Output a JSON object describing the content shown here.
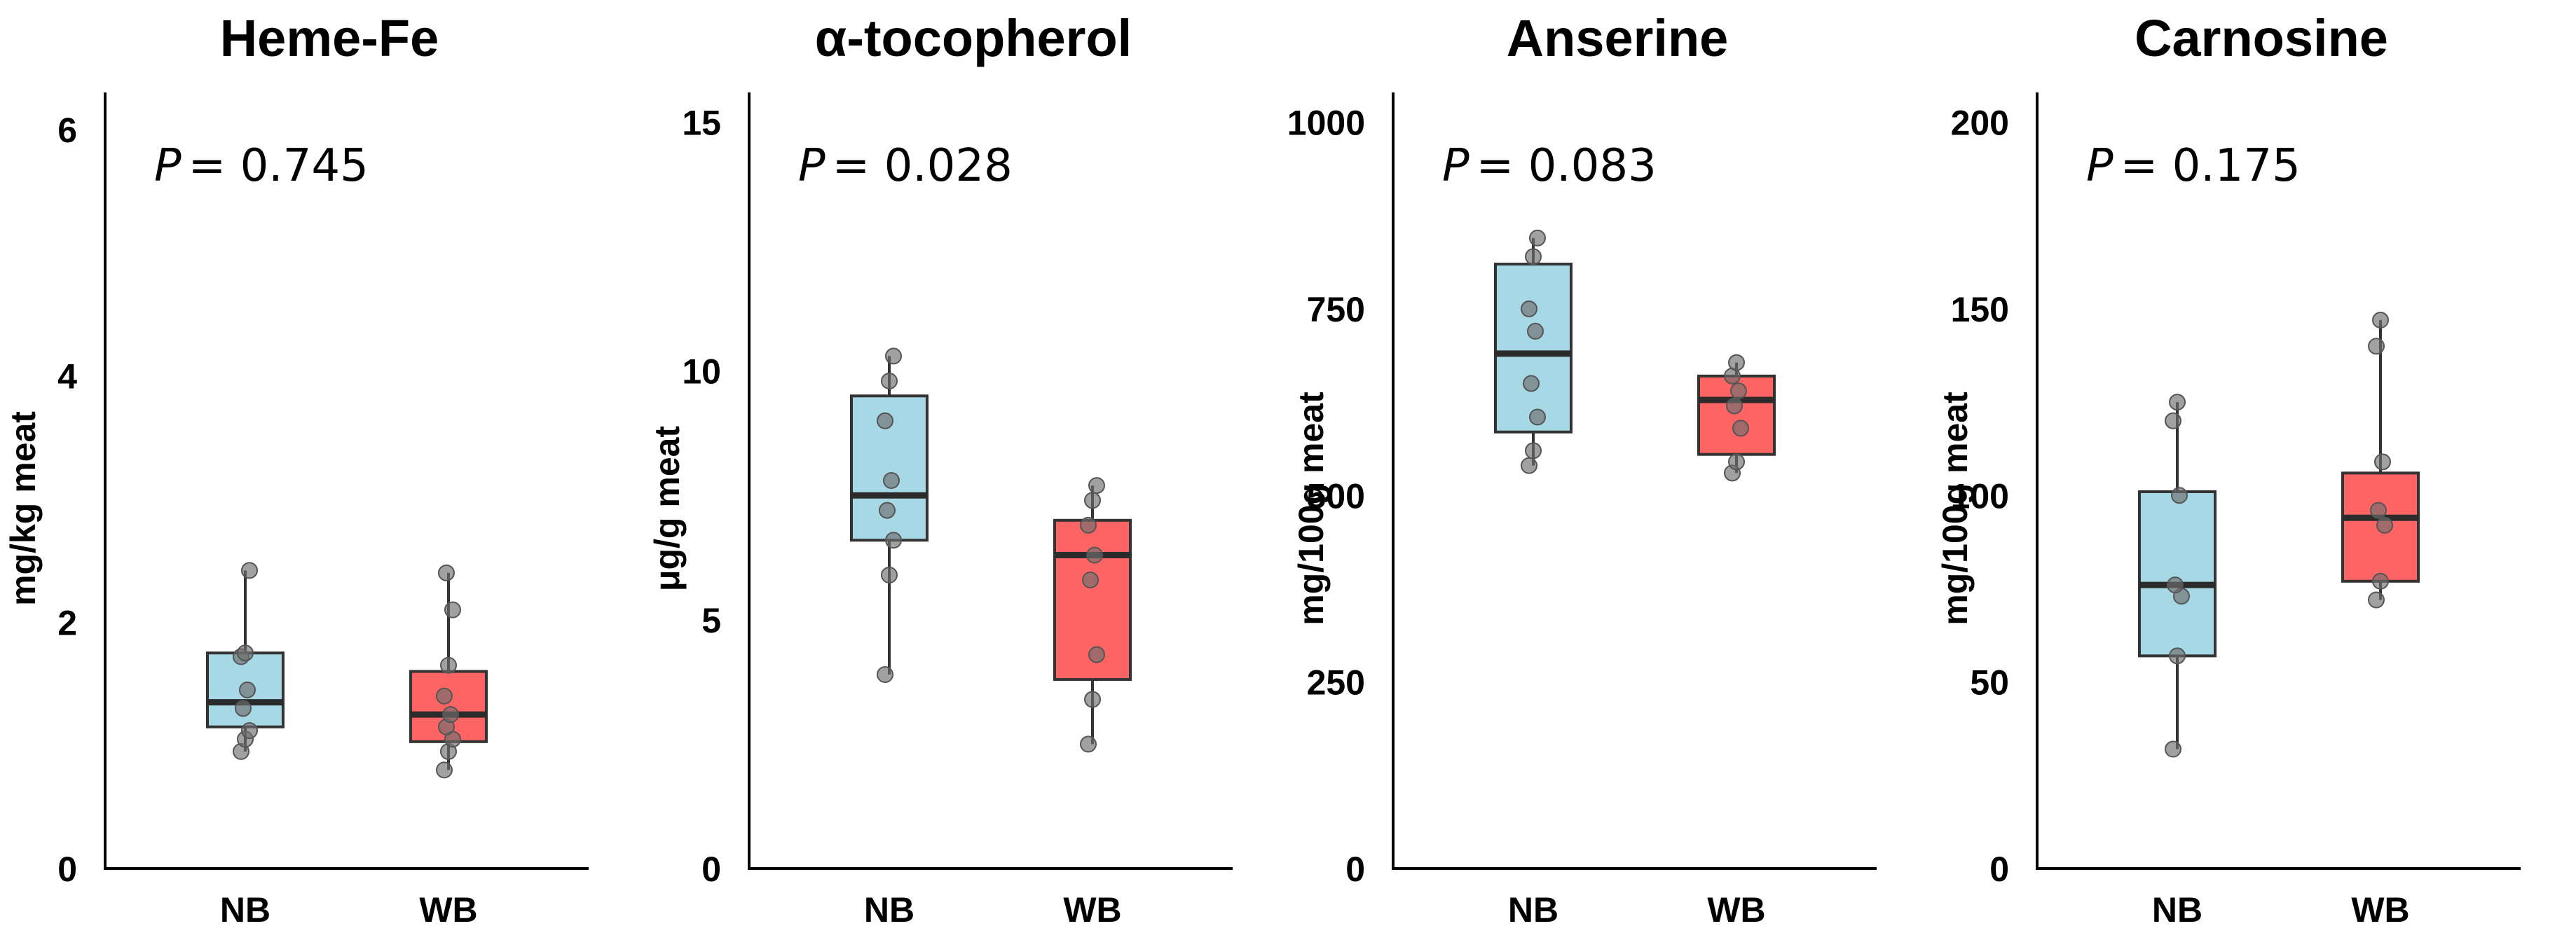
{
  "colors": {
    "NB": "#a6d8e6",
    "WB": "#ff6464",
    "box_stroke": "#333333",
    "point": "#6e6e6e"
  },
  "chart_data": [
    {
      "type": "box",
      "title": "Heme-Fe",
      "ylabel": "mg/kg meat",
      "ylim": [
        0,
        6.3
      ],
      "yticks": [
        0,
        2,
        4,
        6
      ],
      "grid": false,
      "p_label": "P",
      "p_value": "= 0.745",
      "categories": [
        "NB",
        "WB"
      ],
      "boxes": [
        {
          "category": "NB",
          "min": 0.95,
          "q1": 1.15,
          "median": 1.35,
          "q3": 1.75,
          "max": 2.42,
          "points": [
            0.95,
            1.05,
            1.12,
            1.3,
            1.45,
            1.72,
            1.75,
            2.42
          ]
        },
        {
          "category": "WB",
          "min": 0.8,
          "q1": 1.03,
          "median": 1.25,
          "q3": 1.6,
          "max": 2.4,
          "points": [
            0.8,
            0.95,
            1.05,
            1.15,
            1.25,
            1.4,
            1.65,
            2.1,
            2.4
          ]
        }
      ]
    },
    {
      "type": "box",
      "title": "α-tocopherol",
      "ylabel": "μg/g meat",
      "ylim": [
        0,
        15.6
      ],
      "yticks": [
        0,
        5,
        10,
        15
      ],
      "grid": false,
      "p_label": "P",
      "p_value": "= 0.028",
      "categories": [
        "NB",
        "WB"
      ],
      "boxes": [
        {
          "category": "NB",
          "min": 3.9,
          "q1": 6.6,
          "median": 7.5,
          "q3": 9.5,
          "max": 10.3,
          "points": [
            3.9,
            5.9,
            6.6,
            7.2,
            7.8,
            9.0,
            9.8,
            10.3
          ]
        },
        {
          "category": "WB",
          "min": 2.5,
          "q1": 3.8,
          "median": 6.3,
          "q3": 7.0,
          "max": 7.7,
          "points": [
            2.5,
            3.4,
            4.3,
            5.8,
            6.3,
            6.9,
            7.4,
            7.7
          ]
        }
      ]
    },
    {
      "type": "box",
      "title": "Anserine",
      "ylabel": "mg/100g meat",
      "ylim": [
        0,
        1040
      ],
      "yticks": [
        0,
        250,
        500,
        750,
        1000
      ],
      "grid": false,
      "p_label": "P",
      "p_value": "= 0.083",
      "categories": [
        "NB",
        "WB"
      ],
      "boxes": [
        {
          "category": "NB",
          "min": 540,
          "q1": 585,
          "median": 690,
          "q3": 810,
          "max": 845,
          "points": [
            540,
            560,
            605,
            650,
            720,
            750,
            820,
            845
          ]
        },
        {
          "category": "WB",
          "min": 530,
          "q1": 555,
          "median": 628,
          "q3": 660,
          "max": 678,
          "points": [
            530,
            545,
            590,
            620,
            640,
            660,
            678
          ]
        }
      ]
    },
    {
      "type": "box",
      "title": "Carnosine",
      "ylabel": "mg/100g meat",
      "ylim": [
        0,
        208
      ],
      "yticks": [
        0,
        50,
        100,
        150,
        200
      ],
      "grid": false,
      "p_label": "P",
      "p_value": "= 0.175",
      "categories": [
        "NB",
        "WB"
      ],
      "boxes": [
        {
          "category": "NB",
          "min": 32,
          "q1": 57,
          "median": 76,
          "q3": 101,
          "max": 125,
          "points": [
            32,
            57,
            73,
            76,
            100,
            120,
            125
          ]
        },
        {
          "category": "WB",
          "min": 72,
          "q1": 77,
          "median": 94,
          "q3": 106,
          "max": 147,
          "points": [
            72,
            77,
            92,
            96,
            109,
            140,
            147
          ]
        }
      ]
    }
  ]
}
